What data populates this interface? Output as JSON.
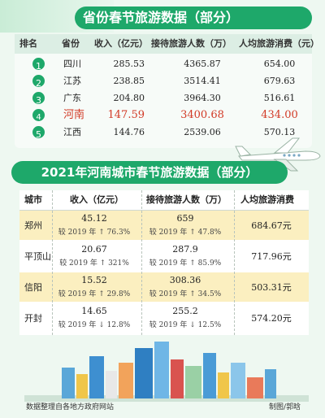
{
  "top_title": "省份春节旅游数据（部分）",
  "province_table": {
    "headers": [
      "排名",
      "省份",
      "收入（亿元）",
      "接待旅游人数（万）",
      "人均旅游消费（元）"
    ],
    "rows": [
      {
        "rank": "1",
        "province": "四川",
        "income": "285.53",
        "visitors": "4365.87",
        "per_capita": "654.00"
      },
      {
        "rank": "2",
        "province": "江苏",
        "income": "238.85",
        "visitors": "3514.41",
        "per_capita": "679.63"
      },
      {
        "rank": "3",
        "province": "广东",
        "income": "204.80",
        "visitors": "3964.30",
        "per_capita": "516.61"
      },
      {
        "rank": "4",
        "province": "河南",
        "income": "147.59",
        "visitors": "3400.68",
        "per_capita": "434.00"
      },
      {
        "rank": "5",
        "province": "江西",
        "income": "144.76",
        "visitors": "2539.06",
        "per_capita": "570.13"
      }
    ],
    "highlight_color": "#d23a26"
  },
  "city_title": "2021年河南城市春节旅游数据（部分）",
  "city_table": {
    "headers": [
      "城市",
      "收入（亿元）",
      "接待旅游人数（万）",
      "人均旅游消费"
    ],
    "rows": [
      {
        "city": "郑州",
        "income": "45.12",
        "income_cmp": "较 2019 年 ↑ 76.3%",
        "visitors": "659",
        "visitors_cmp": "较 2019 年 ↑ 47.8%",
        "per_capita": "684.67元"
      },
      {
        "city": "平顶山",
        "income": "20.67",
        "income_cmp": "较 2019 年 ↑ 321%",
        "visitors": "287.9",
        "visitors_cmp": "较 2019 年 ↑ 85.9%",
        "per_capita": "717.96元"
      },
      {
        "city": "信阳",
        "income": "15.52",
        "income_cmp": "较 2019 年 ↑ 29.8%",
        "visitors": "308.36",
        "visitors_cmp": "较 2019 年 ↑ 34.5%",
        "per_capita": "503.31元"
      },
      {
        "city": "开封",
        "income": "14.65",
        "income_cmp": "较 2019 年 ↓ 12.8%",
        "visitors": "255.2",
        "visitors_cmp": "较 2019 年 ↓ 12.5%",
        "per_capita": "574.20元"
      }
    ]
  },
  "footer": {
    "source": "数据整理自各地方政府网站",
    "credit": "制图/郭晗"
  },
  "colors": {
    "accent_green": "#1ea86a",
    "row_yellow": "#fbefc0",
    "background": "#eef8f1"
  }
}
